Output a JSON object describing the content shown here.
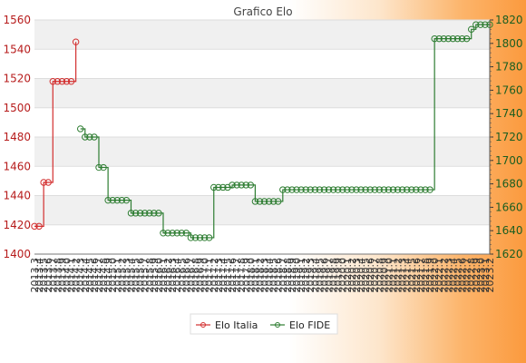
{
  "chart_data": {
    "type": "line",
    "title": "Grafico Elo",
    "xlabel": "",
    "ylabel": "",
    "grid": true,
    "legend_position": "bottom",
    "y_left": {
      "min": 1400,
      "max": 1560,
      "ticks": [
        1400,
        1420,
        1440,
        1460,
        1480,
        1500,
        1520,
        1540,
        1560
      ],
      "color": "#b71c1c"
    },
    "y_right": {
      "min": 1620,
      "max": 1820,
      "ticks": [
        1620,
        1640,
        1660,
        1680,
        1700,
        1720,
        1740,
        1760,
        1780,
        1800,
        1820
      ],
      "color": "#1b5e20"
    },
    "x_range": [
      2013.3,
      2023.2
    ],
    "first_x_label": "2013.3",
    "last_x_label": "2023.2",
    "series": [
      {
        "name": "Elo Italia",
        "axis": "left",
        "color": "#d32f2f",
        "x": [
          2013.3,
          2013.4,
          2013.5,
          2013.6,
          2013.7,
          2013.8,
          2013.9,
          2014.0,
          2014.1,
          2014.2
        ],
        "y": [
          1419,
          1419,
          1449,
          1449,
          1518,
          1518,
          1518,
          1518,
          1518,
          1545
        ]
      },
      {
        "name": "Elo FIDE",
        "axis": "right",
        "color": "#2e7d32",
        "x": [
          2014.3,
          2014.4,
          2014.5,
          2014.6,
          2014.7,
          2014.8,
          2014.9,
          2015.0,
          2015.1,
          2015.2,
          2015.3,
          2015.4,
          2015.5,
          2015.6,
          2015.7,
          2015.8,
          2015.9,
          2016.0,
          2016.1,
          2016.2,
          2016.3,
          2016.4,
          2016.5,
          2016.6,
          2016.7,
          2016.8,
          2016.9,
          2017.0,
          2017.1,
          2017.2,
          2017.3,
          2017.4,
          2017.5,
          2017.6,
          2017.7,
          2017.8,
          2017.9,
          2018.0,
          2018.1,
          2018.2,
          2018.3,
          2018.4,
          2018.5,
          2018.6,
          2018.7,
          2018.8,
          2018.9,
          2019.0,
          2019.1,
          2019.2,
          2019.3,
          2019.4,
          2019.5,
          2019.6,
          2019.7,
          2019.8,
          2019.9,
          2020.0,
          2020.1,
          2020.2,
          2020.3,
          2020.4,
          2020.5,
          2020.6,
          2020.7,
          2020.8,
          2020.9,
          2021.0,
          2021.1,
          2021.2,
          2021.3,
          2021.4,
          2021.5,
          2021.6,
          2021.7,
          2021.8,
          2021.9,
          2022.0,
          2022.1,
          2022.2,
          2022.3,
          2022.4,
          2022.5,
          2022.6,
          2022.7,
          2022.8,
          2022.9,
          2023.0,
          2023.1,
          2023.2
        ],
        "y": [
          1727,
          1720,
          1720,
          1720,
          1694,
          1694,
          1666,
          1666,
          1666,
          1666,
          1666,
          1655,
          1655,
          1655,
          1655,
          1655,
          1655,
          1655,
          1638,
          1638,
          1638,
          1638,
          1638,
          1638,
          1634,
          1634,
          1634,
          1634,
          1634,
          1677,
          1677,
          1677,
          1677,
          1679,
          1679,
          1679,
          1679,
          1679,
          1665,
          1665,
          1665,
          1665,
          1665,
          1665,
          1675,
          1675,
          1675,
          1675,
          1675,
          1675,
          1675,
          1675,
          1675,
          1675,
          1675,
          1675,
          1675,
          1675,
          1675,
          1675,
          1675,
          1675,
          1675,
          1675,
          1675,
          1675,
          1675,
          1675,
          1675,
          1675,
          1675,
          1675,
          1675,
          1675,
          1675,
          1675,
          1675,
          1804,
          1804,
          1804,
          1804,
          1804,
          1804,
          1804,
          1804,
          1812,
          1816,
          1816,
          1816,
          1816
        ]
      }
    ]
  }
}
